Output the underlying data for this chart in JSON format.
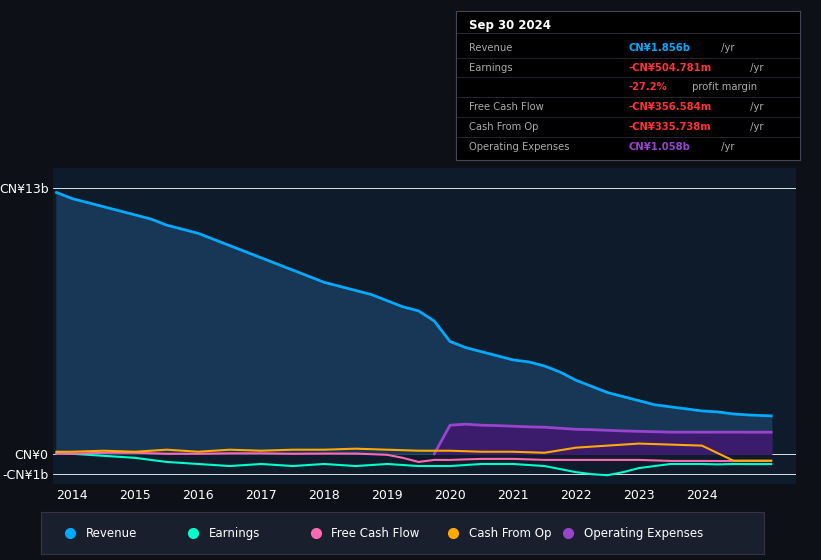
{
  "background_color": "#0d1117",
  "plot_bg_color": "#0d1b2a",
  "xlim": [
    2013.7,
    2025.5
  ],
  "ylim": [
    -1500000000.0,
    14000000000.0
  ],
  "yticks": [
    13000000000.0,
    0,
    -1000000000.0
  ],
  "ytick_labels": [
    "CN¥13b",
    "CN¥0",
    "-CN¥1b"
  ],
  "xticks": [
    2014,
    2015,
    2016,
    2017,
    2018,
    2019,
    2020,
    2021,
    2022,
    2023,
    2024
  ],
  "revenue_color": "#00aaff",
  "revenue_fill": "#1a3a5c",
  "earnings_color": "#00ffcc",
  "fcf_color": "#ff69b4",
  "cashfromop_color": "#ffaa00",
  "opex_color": "#9944cc",
  "opex_fill": "#3d1a6e",
  "legend_bg": "#1a1f2e",
  "legend_border": "#333344",
  "info_title": "Sep 30 2024",
  "revenue_x": [
    2013.75,
    2014.0,
    2014.25,
    2014.5,
    2014.75,
    2015.0,
    2015.25,
    2015.5,
    2015.75,
    2016.0,
    2016.25,
    2016.5,
    2016.75,
    2017.0,
    2017.25,
    2017.5,
    2017.75,
    2018.0,
    2018.25,
    2018.5,
    2018.75,
    2019.0,
    2019.25,
    2019.5,
    2019.75,
    2020.0,
    2020.25,
    2020.5,
    2020.75,
    2021.0,
    2021.25,
    2021.5,
    2021.75,
    2022.0,
    2022.25,
    2022.5,
    2022.75,
    2023.0,
    2023.25,
    2023.5,
    2023.75,
    2024.0,
    2024.25,
    2024.5,
    2024.75,
    2025.1
  ],
  "revenue_y": [
    12800000000,
    12500000000,
    12300000000,
    12100000000,
    11900000000,
    11700000000,
    11500000000,
    11200000000,
    11000000000,
    10800000000,
    10500000000,
    10200000000,
    9900000000,
    9600000000,
    9300000000,
    9000000000,
    8700000000,
    8400000000,
    8200000000,
    8000000000,
    7800000000,
    7500000000,
    7200000000,
    7000000000,
    6500000000,
    5500000000,
    5200000000,
    5000000000,
    4800000000,
    4600000000,
    4500000000,
    4300000000,
    4000000000,
    3600000000,
    3300000000,
    3000000000,
    2800000000,
    2600000000,
    2400000000,
    2300000000,
    2200000000,
    2100000000,
    2050000000,
    1950000000,
    1900000000,
    1856000000
  ],
  "earnings_x": [
    2013.75,
    2014.0,
    2014.5,
    2015.0,
    2015.5,
    2016.0,
    2016.5,
    2017.0,
    2017.5,
    2018.0,
    2018.5,
    2019.0,
    2019.5,
    2020.0,
    2020.5,
    2021.0,
    2021.5,
    2022.0,
    2022.25,
    2022.5,
    2022.75,
    2023.0,
    2023.25,
    2023.5,
    2023.75,
    2024.0,
    2024.25,
    2024.5,
    2024.75,
    2025.1
  ],
  "earnings_y": [
    50000000,
    0,
    -100000000,
    -200000000,
    -400000000,
    -500000000,
    -600000000,
    -500000000,
    -600000000,
    -500000000,
    -600000000,
    -500000000,
    -600000000,
    -600000000,
    -500000000,
    -500000000,
    -600000000,
    -900000000,
    -1000000000,
    -1050000000,
    -900000000,
    -700000000,
    -600000000,
    -500000000,
    -500000000,
    -500000000,
    -520000000,
    -500000000,
    -505000000,
    -504781000
  ],
  "fcf_x": [
    2013.75,
    2014.0,
    2014.5,
    2015.0,
    2015.5,
    2016.0,
    2016.5,
    2017.0,
    2017.5,
    2018.0,
    2018.5,
    2019.0,
    2019.25,
    2019.5,
    2019.75,
    2020.0,
    2020.5,
    2021.0,
    2021.5,
    2022.0,
    2022.5,
    2023.0,
    2023.5,
    2024.0,
    2024.5,
    2025.1
  ],
  "fcf_y": [
    0,
    0,
    50000000,
    50000000,
    0,
    0,
    20000000,
    20000000,
    0,
    10000000,
    10000000,
    -50000000,
    -200000000,
    -400000000,
    -300000000,
    -300000000,
    -250000000,
    -250000000,
    -300000000,
    -300000000,
    -300000000,
    -300000000,
    -350000000,
    -350000000,
    -356584000,
    -356584000
  ],
  "cashop_x": [
    2013.75,
    2014.0,
    2014.5,
    2015.0,
    2015.5,
    2016.0,
    2016.5,
    2017.0,
    2017.5,
    2018.0,
    2018.5,
    2019.0,
    2019.5,
    2020.0,
    2020.5,
    2021.0,
    2021.5,
    2022.0,
    2022.5,
    2023.0,
    2023.5,
    2024.0,
    2024.5,
    2025.1
  ],
  "cashop_y": [
    100000000,
    100000000,
    150000000,
    100000000,
    200000000,
    100000000,
    200000000,
    150000000,
    200000000,
    200000000,
    250000000,
    200000000,
    150000000,
    150000000,
    100000000,
    100000000,
    50000000,
    300000000,
    400000000,
    500000000,
    450000000,
    400000000,
    -335738000,
    -335738000
  ],
  "opex_x": [
    2019.75,
    2020.0,
    2020.25,
    2020.5,
    2020.75,
    2021.0,
    2021.25,
    2021.5,
    2021.75,
    2022.0,
    2022.25,
    2022.5,
    2022.75,
    2023.0,
    2023.25,
    2023.5,
    2023.75,
    2024.0,
    2024.25,
    2024.5,
    2024.75,
    2025.1
  ],
  "opex_y": [
    0,
    1400000000,
    1450000000,
    1400000000,
    1380000000,
    1350000000,
    1320000000,
    1300000000,
    1250000000,
    1200000000,
    1180000000,
    1150000000,
    1120000000,
    1100000000,
    1080000000,
    1060000000,
    1060000000,
    1058000000,
    1060000000,
    1060000000,
    1058000000,
    1058000000
  ]
}
